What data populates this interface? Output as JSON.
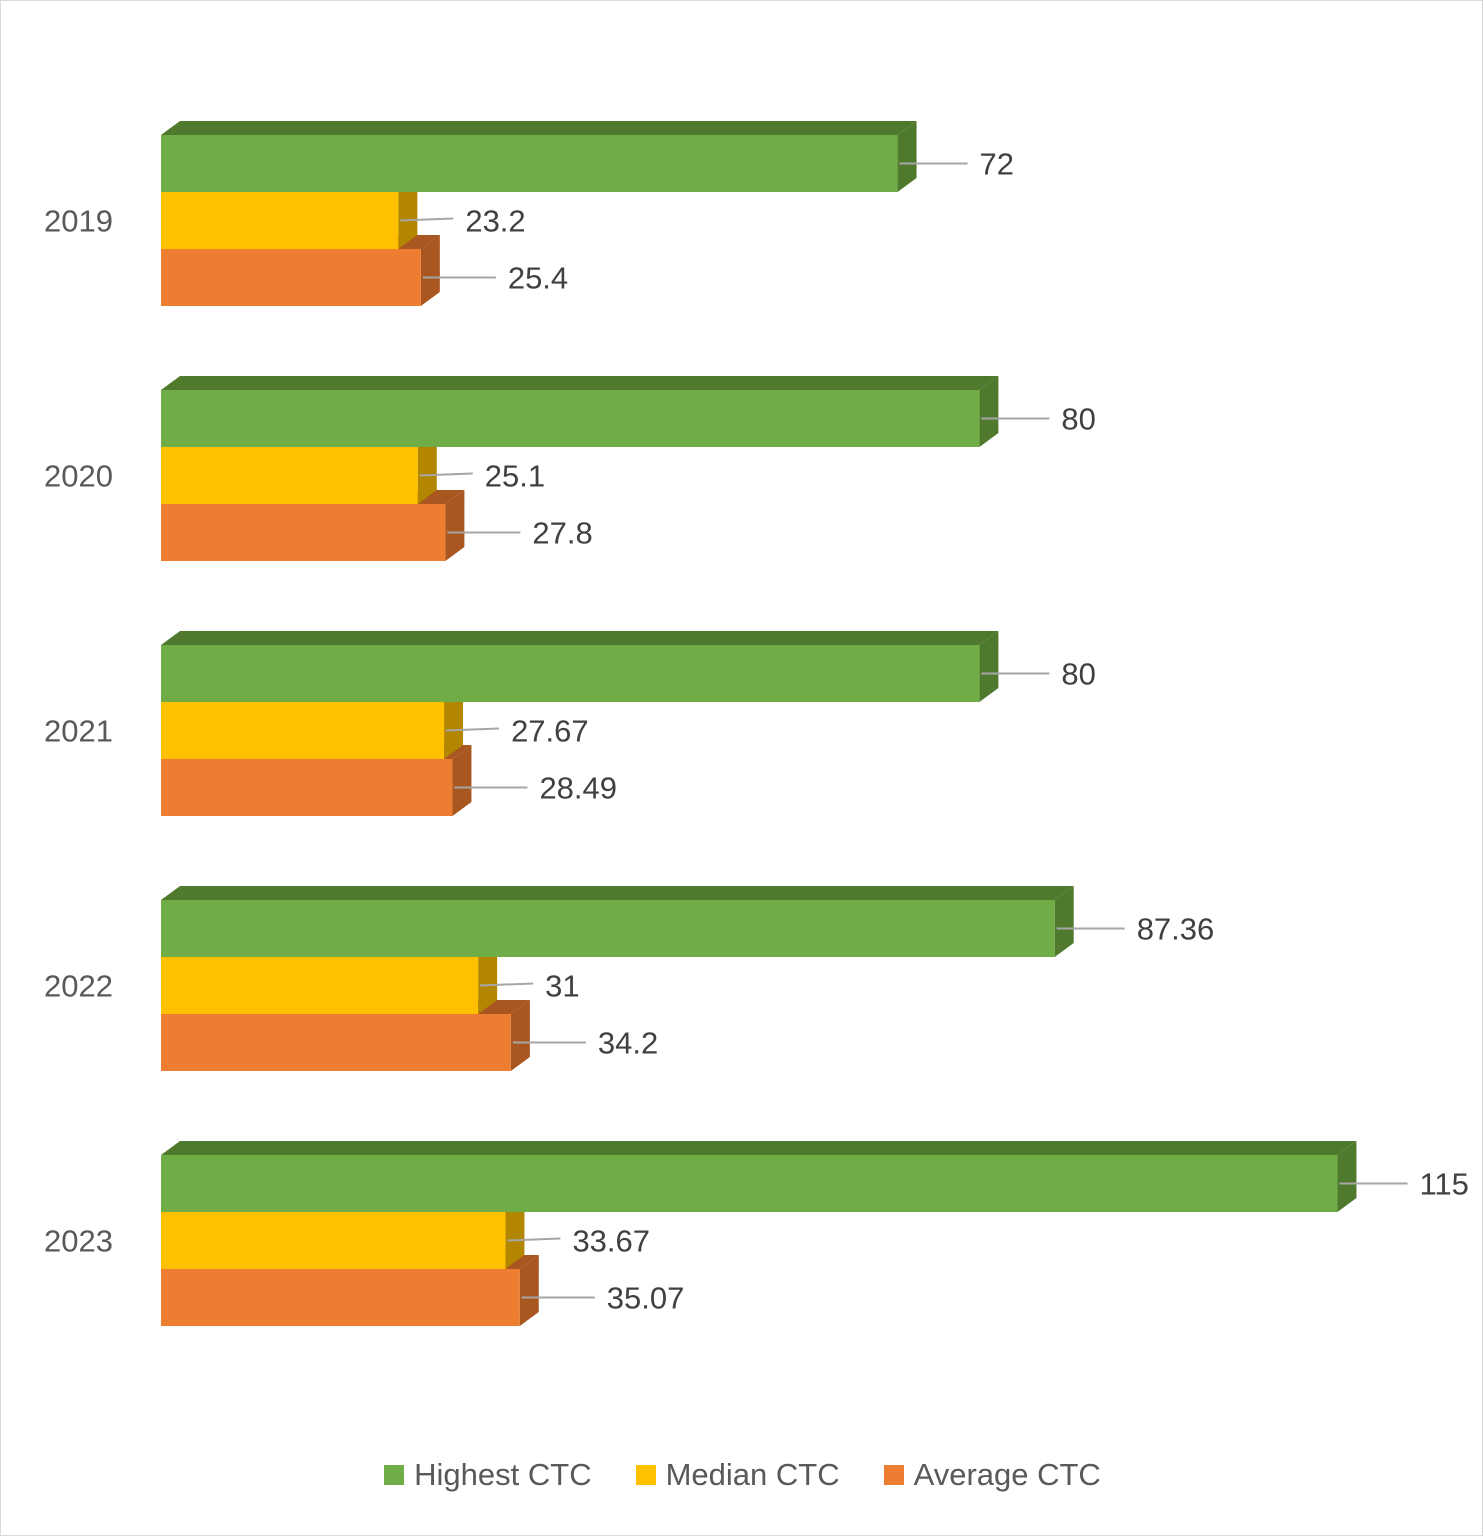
{
  "chart_data": {
    "type": "bar",
    "orientation": "horizontal",
    "style": "3d-clustered",
    "title": "",
    "xlabel": "",
    "ylabel": "",
    "xlim": [
      0,
      115
    ],
    "grid": false,
    "legend_position": "bottom",
    "categories": [
      "2019",
      "2020",
      "2021",
      "2022",
      "2023"
    ],
    "series": [
      {
        "name": "Highest CTC",
        "color": "#70AD47",
        "side_color": "#4F7A2E",
        "values": [
          72,
          80,
          80,
          87.36,
          115
        ],
        "labels": [
          "72",
          "80",
          "80",
          "87.36",
          "115"
        ]
      },
      {
        "name": "Median CTC",
        "color": "#FFC000",
        "side_color": "#B38600",
        "values": [
          23.2,
          25.1,
          27.67,
          31,
          33.67
        ],
        "labels": [
          "23.2",
          "25.1",
          "27.67",
          "31",
          "33.67"
        ]
      },
      {
        "name": "Average CTC",
        "color": "#ED7D31",
        "side_color": "#A95620",
        "values": [
          25.4,
          27.8,
          28.49,
          34.2,
          35.07
        ],
        "labels": [
          "25.4",
          "27.8",
          "28.49",
          "34.2",
          "35.07"
        ]
      }
    ]
  }
}
